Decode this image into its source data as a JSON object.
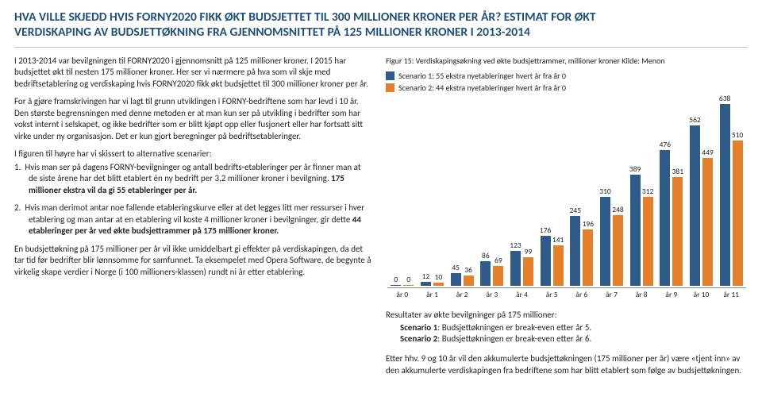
{
  "title_line1": "HVA VILLE SKJEDD HVIS FORNY2020 FIKK ØKT BUDSJETTET TIL 300 MILLIONER KRONER PER ÅR? ESTIMAT FOR ØKT",
  "title_line2": "VERDISKAPING AV BUDSJETTØKNING FRA GJENNOMSNITTET PÅ 125 MILLIONER KRONER I 2013-2014",
  "left": {
    "p1": "I 2013-2014 var bevilgningen til FORNY2020 i gjennomsnitt på 125 millioner kroner. I 2015 har budsjettet økt til nesten 175 millioner kroner. Her ser vi nærmere på hva som vil skje med bedriftsetablering og verdiskaping hvis FORNY2020 fikk økt budsjettet til 300 millioner kroner per år.",
    "p2": "For å gjøre framskrivingen har vi lagt til grunn utviklingen i FORNY-bedriftene som har levd i 10 år. Den største begrensningen med denne metoden er at man kun ser på utvikling i bedrifter som har vokst internt i selskapet, og ikke bedrifter som er blitt kjøpt opp eller fusjonert eller har fortsatt sitt virke under ny organisasjon. Det er kun gjort beregninger på bedriftsetableringer.",
    "listintro": "I figuren til høyre har vi skissert to alternative scenarier:",
    "li1_num": "1.",
    "li1_a": "Hvis man ser på dagens FORNY-bevilgninger og antall bedrifts-etableringer per år finner man at de siste årene har det blitt etablert én ny bedrift per 3,2 millioner kroner i bevilgning. ",
    "li1_b": "175 millioner ekstra vil da gi 55 etableringer per år.",
    "li2_num": "2.",
    "li2_a": "Hvis man derimot antar noe fallende etableringskurve eller at det legges litt mer ressurser i hver etablering og man antar at en etablering vil koste 4 millioner kroner i bevilgninger, gir dette ",
    "li2_b": "44 etableringer per år ved økte budsjettrammer på 175 millioner kroner.",
    "p3": "En budsjettøkning på 175 millioner per år vil ikke umiddelbart gi effekter på verdiskapingen, da det tar tid før bedrifter blir lønnsomme for samfunnet. Ta eksempelet med Opera Software, de begynte å virkelig skape verdier i Norge (i 100 millioners-klassen) rundt ni år etter etablering."
  },
  "chart": {
    "fig_title": "Figur 15: Verdiskapingsøkning ved økte budsjettrammer, millioner kroner Kilde: Menon",
    "legend1": "Scenario 1: 55 ekstra nyetableringer hvert år fra år 0",
    "legend2": "Scenario 2: 44 ekstra nyetableringer hvert år fra år 0",
    "color1": "#2e5b8a",
    "color2": "#e57f2a",
    "ymax": 660,
    "categories": [
      "år 0",
      "år 1",
      "år 2",
      "år 3",
      "år 4",
      "år 5",
      "år 6",
      "år 7",
      "år 8",
      "år 9",
      "år 10",
      "år 11"
    ],
    "s1": [
      0,
      12,
      45,
      86,
      123,
      176,
      245,
      310,
      389,
      476,
      562,
      638
    ],
    "s2": [
      0,
      10,
      36,
      69,
      99,
      141,
      196,
      248,
      312,
      381,
      449,
      510
    ]
  },
  "results": {
    "hdr": "Resultater av økte bevilgninger på 175 millioner:",
    "l1a": "Scenario 1",
    "l1b": ": Budsjettøkningen er break-even etter år 5.",
    "l2a": "Scenario 2",
    "l2b": ": Budsjettøkningen er break-even etter år 6."
  },
  "after": "Etter hhv. 9 og 10 år vil den akkumulerte budsjettøkningen (175 millioner per år) være «tjent inn» av den akkumulerte verdiskapingen fra bedriftene som har blitt etablert som følge av budsjettøkningen."
}
